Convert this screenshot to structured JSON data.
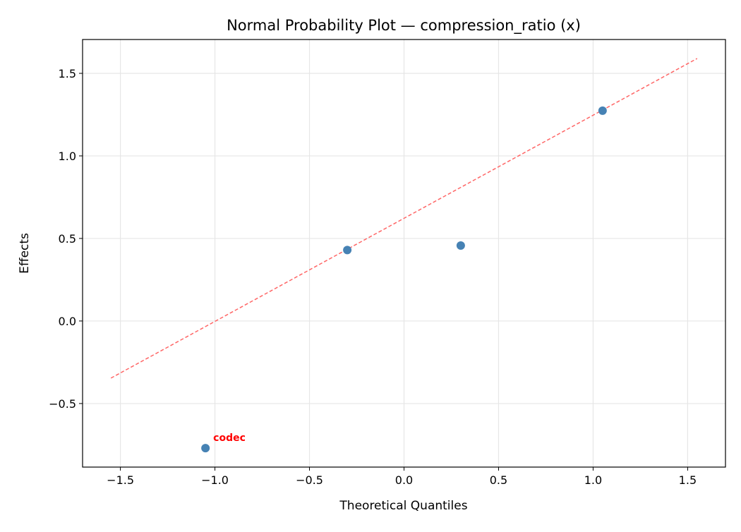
{
  "chart_data": {
    "type": "scatter",
    "title": "Normal Probability Plot — compression_ratio (x)",
    "xlabel": "Theoretical Quantiles",
    "ylabel": "Effects",
    "xlim": [
      -1.7,
      1.7
    ],
    "ylim": [
      -0.885,
      1.705
    ],
    "xticks": [
      -1.5,
      -1.0,
      -0.5,
      0.0,
      0.5,
      1.0,
      1.5
    ],
    "yticks": [
      -0.5,
      0.0,
      0.5,
      1.0,
      1.5
    ],
    "xtick_labels": [
      "−1.5",
      "−1.0",
      "−0.5",
      "0.0",
      "0.5",
      "1.0",
      "1.5"
    ],
    "ytick_labels": [
      "−0.5",
      "0.0",
      "0.5",
      "1.0",
      "1.5"
    ],
    "grid": true,
    "points": [
      {
        "x": -1.05,
        "y": -0.77,
        "label": "codec"
      },
      {
        "x": -0.3,
        "y": 0.43,
        "label": ""
      },
      {
        "x": 0.3,
        "y": 0.457,
        "label": ""
      },
      {
        "x": 1.05,
        "y": 1.274,
        "label": ""
      }
    ],
    "reference_line": {
      "x": [
        -1.55,
        1.55
      ],
      "y": [
        -0.346,
        1.59
      ],
      "style": "dashed"
    },
    "colors": {
      "points": "#4682b4",
      "line": "#ff6666",
      "annotation": "#ff0000",
      "grid": "#e6e6e6"
    }
  }
}
